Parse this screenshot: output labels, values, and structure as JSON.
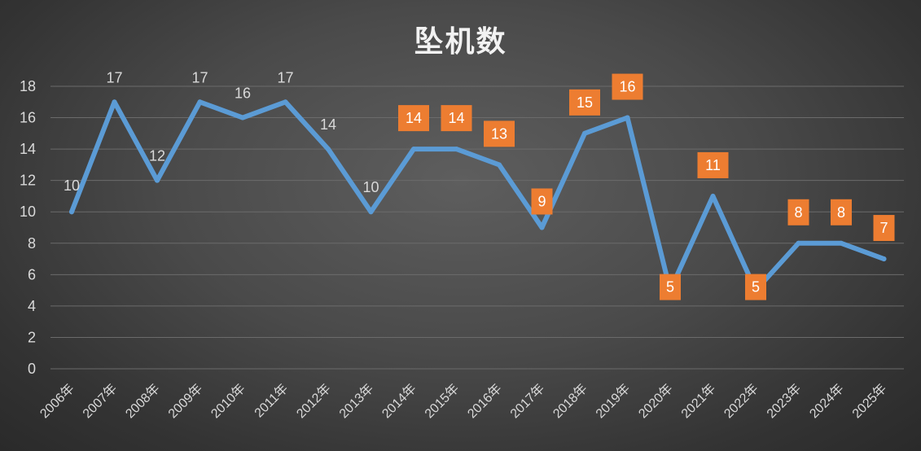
{
  "chart_data": {
    "type": "line",
    "title": "坠机数",
    "categories": [
      "2006年",
      "2007年",
      "2008年",
      "2009年",
      "2010年",
      "2011年",
      "2012年",
      "2013年",
      "2014年",
      "2015年",
      "2016年",
      "2017年",
      "2018年",
      "2019年",
      "2020年",
      "2021年",
      "2022年",
      "2023年",
      "2024年",
      "2025年"
    ],
    "values": [
      10,
      17,
      12,
      17,
      16,
      17,
      14,
      10,
      14,
      14,
      13,
      9,
      15,
      16,
      5,
      11,
      5,
      8,
      8,
      7
    ],
    "highlighted_labels_from_index": 8,
    "ylim": [
      0,
      18
    ],
    "yticks": [
      0,
      2,
      4,
      6,
      8,
      10,
      12,
      14,
      16,
      18
    ],
    "grid": true,
    "line_color": "#5b9bd5",
    "label_box_color": "#ed7d31",
    "plain_label_color": "#d9d9d9"
  }
}
